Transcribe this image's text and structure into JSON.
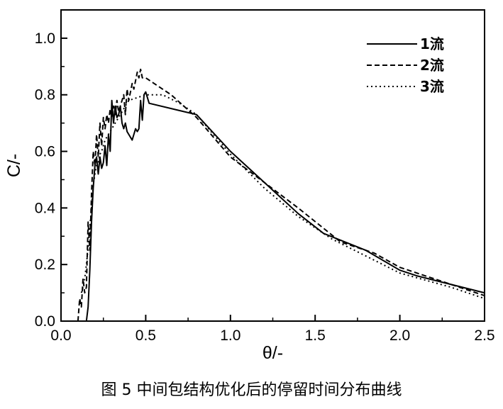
{
  "caption": "图 5 中间包结构优化后的停留时间分布曲线",
  "chart_data": {
    "type": "line",
    "xlabel": "θ/-",
    "ylabel": "C/-",
    "xlim": [
      0,
      2.5
    ],
    "ylim": [
      0,
      1.1
    ],
    "xticks": [
      "0.0",
      "0.5",
      "1.0",
      "1.5",
      "2.0",
      "2.5"
    ],
    "yticks": [
      "0.0",
      "0.2",
      "0.4",
      "0.6",
      "0.8",
      "1.0"
    ],
    "legend_position": "top-right",
    "grid": false,
    "series": [
      {
        "name": "1流",
        "dash": "solid",
        "x": [
          0.15,
          0.16,
          0.17,
          0.18,
          0.19,
          0.2,
          0.21,
          0.22,
          0.23,
          0.24,
          0.25,
          0.26,
          0.27,
          0.28,
          0.29,
          0.3,
          0.31,
          0.32,
          0.33,
          0.34,
          0.35,
          0.36,
          0.37,
          0.38,
          0.39,
          0.4,
          0.42,
          0.44,
          0.45,
          0.46,
          0.47,
          0.48,
          0.49,
          0.5,
          0.52,
          0.8,
          1.0,
          1.2,
          1.4,
          1.55,
          1.8,
          2.0,
          2.1,
          2.3,
          2.5
        ],
        "y": [
          0.0,
          0.05,
          0.18,
          0.35,
          0.47,
          0.55,
          0.58,
          0.52,
          0.58,
          0.54,
          0.56,
          0.62,
          0.55,
          0.66,
          0.6,
          0.78,
          0.7,
          0.76,
          0.72,
          0.73,
          0.76,
          0.7,
          0.68,
          0.7,
          0.67,
          0.66,
          0.64,
          0.68,
          0.67,
          0.68,
          0.78,
          0.71,
          0.8,
          0.81,
          0.77,
          0.73,
          0.6,
          0.49,
          0.38,
          0.31,
          0.25,
          0.18,
          0.16,
          0.13,
          0.1
        ]
      },
      {
        "name": "2流",
        "dash": "dashed",
        "x": [
          0.1,
          0.11,
          0.12,
          0.13,
          0.14,
          0.15,
          0.16,
          0.17,
          0.18,
          0.19,
          0.2,
          0.21,
          0.22,
          0.23,
          0.24,
          0.25,
          0.26,
          0.27,
          0.28,
          0.29,
          0.3,
          0.31,
          0.32,
          0.33,
          0.34,
          0.35,
          0.37,
          0.38,
          0.39,
          0.4,
          0.42,
          0.43,
          0.45,
          0.46,
          0.47,
          0.48,
          0.5,
          0.55,
          0.65,
          0.8,
          1.0,
          1.2,
          1.4,
          1.65,
          1.85,
          2.0,
          2.2,
          2.5
        ],
        "y": [
          0.0,
          0.08,
          0.05,
          0.15,
          0.1,
          0.12,
          0.35,
          0.25,
          0.45,
          0.6,
          0.55,
          0.66,
          0.58,
          0.7,
          0.62,
          0.72,
          0.68,
          0.73,
          0.7,
          0.75,
          0.72,
          0.76,
          0.73,
          0.78,
          0.74,
          0.76,
          0.8,
          0.73,
          0.82,
          0.78,
          0.84,
          0.82,
          0.88,
          0.86,
          0.89,
          0.86,
          0.86,
          0.84,
          0.8,
          0.72,
          0.58,
          0.49,
          0.4,
          0.28,
          0.24,
          0.19,
          0.15,
          0.09
        ]
      },
      {
        "name": "3流",
        "dash": "dotted",
        "x": [
          0.12,
          0.13,
          0.14,
          0.15,
          0.16,
          0.17,
          0.18,
          0.19,
          0.2,
          0.21,
          0.22,
          0.23,
          0.24,
          0.25,
          0.26,
          0.28,
          0.3,
          0.32,
          0.34,
          0.36,
          0.38,
          0.4,
          0.45,
          0.5,
          0.6,
          0.7,
          0.8,
          1.0,
          1.2,
          1.4,
          1.6,
          1.8,
          2.0,
          2.3,
          2.5
        ],
        "y": [
          0.1,
          0.12,
          0.15,
          0.2,
          0.26,
          0.33,
          0.4,
          0.48,
          0.52,
          0.55,
          0.56,
          0.59,
          0.6,
          0.62,
          0.64,
          0.66,
          0.68,
          0.7,
          0.72,
          0.74,
          0.76,
          0.78,
          0.79,
          0.8,
          0.8,
          0.77,
          0.73,
          0.59,
          0.47,
          0.37,
          0.29,
          0.23,
          0.17,
          0.12,
          0.08
        ]
      }
    ]
  }
}
